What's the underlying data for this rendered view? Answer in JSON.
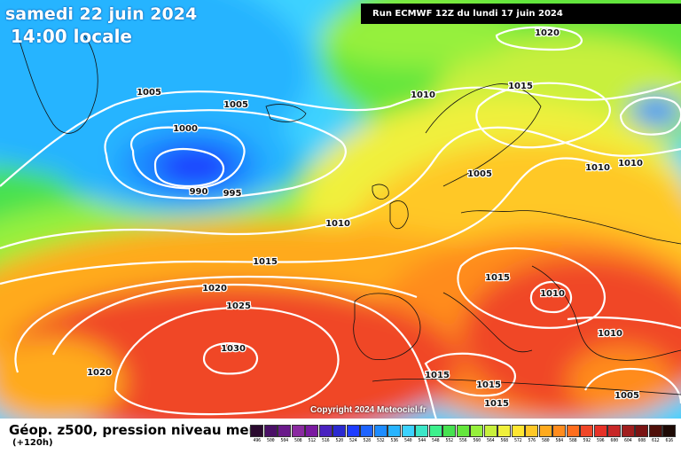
{
  "header": {
    "date": "samedi 22 juin 2024",
    "time": "14:00 locale",
    "run": "Run ECMWF 12Z du lundi 17 juin 2024"
  },
  "footer": {
    "title": "Géop. z500, pression niveau mer",
    "subtitle": "(+120h)",
    "copyright": "Copyright 2024 Meteociel.fr"
  },
  "colors": {
    "deep_blue": "#1e3cff",
    "cyan": "#3cd2ff",
    "green": "#46e14b",
    "yellow": "#ffe632",
    "orange": "#ff9a1e",
    "red": "#f03c28",
    "isobar": "#ffffff"
  },
  "isobar_labels": [
    "1020",
    "1005",
    "1005",
    "1000",
    "990",
    "995",
    "1010",
    "1015",
    "1010",
    "1010",
    "1005",
    "1010",
    "1015",
    "1020",
    "1025",
    "1030",
    "1020",
    "1015",
    "1015",
    "1010",
    "1010",
    "1015",
    "1015",
    "1005"
  ],
  "legend": {
    "values": [
      "496",
      "500",
      "504",
      "508",
      "512",
      "516",
      "520",
      "524",
      "528",
      "532",
      "536",
      "540",
      "544",
      "548",
      "552",
      "556",
      "560",
      "564",
      "568",
      "572",
      "576",
      "580",
      "584",
      "588",
      "592",
      "596",
      "600",
      "604",
      "608",
      "612",
      "616"
    ],
    "colors": [
      "#2a0a2e",
      "#4a1066",
      "#6a1a8a",
      "#8a2aa0",
      "#7a1aa0",
      "#4a22c0",
      "#2a2ad0",
      "#1e3cff",
      "#1e64ff",
      "#1e8cff",
      "#28b4ff",
      "#3cd2ff",
      "#3ce6c8",
      "#3cf08c",
      "#46e150",
      "#64e63c",
      "#96f03c",
      "#c8f03c",
      "#f0f03c",
      "#ffe632",
      "#ffc828",
      "#ffaa1e",
      "#ff8c1e",
      "#ff6e1e",
      "#f04628",
      "#e63228",
      "#c82828",
      "#a01e1e",
      "#7a1414",
      "#50100a",
      "#1e0a05"
    ]
  }
}
